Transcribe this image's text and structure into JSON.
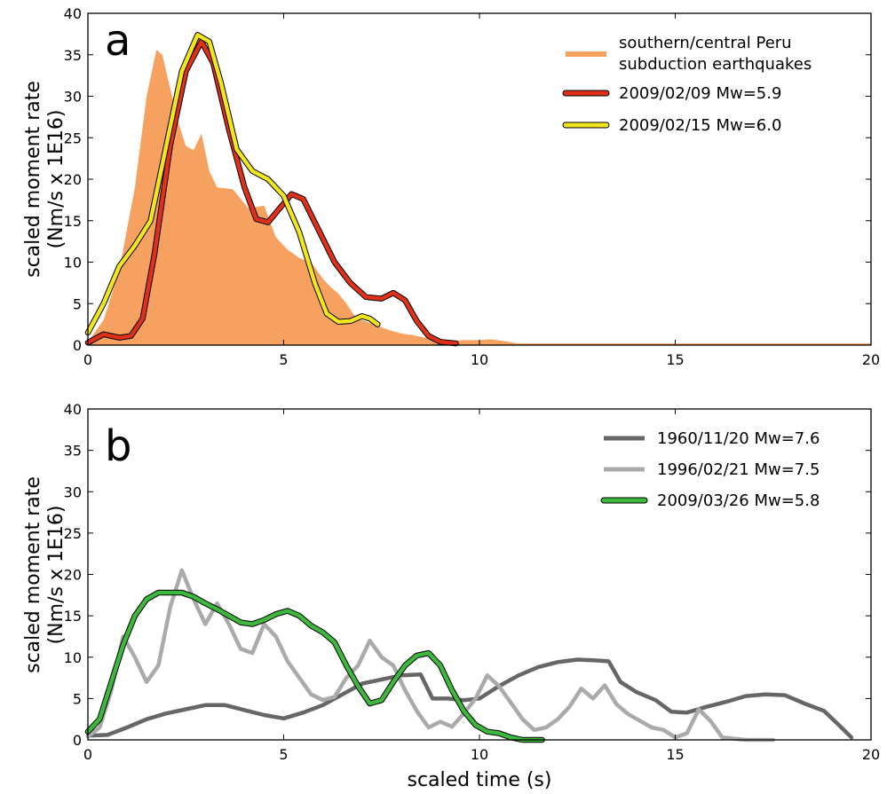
{
  "figure": {
    "xlabel": "scaled time (s)"
  },
  "chart_data": [
    {
      "type": "line",
      "panel_label": "a",
      "ylabel_line1": "scaled moment rate",
      "ylabel_line2": "(Nm/s x 1E16)",
      "xlim": [
        0,
        20
      ],
      "ylim": [
        0,
        40
      ],
      "x_ticks": [
        "0",
        "5",
        "10",
        "15",
        "20"
      ],
      "y_ticks": [
        "0",
        "5",
        "10",
        "15",
        "20",
        "25",
        "30",
        "35",
        "40"
      ],
      "grid": false,
      "legend_position": "top-right",
      "series": [
        {
          "name_lines": [
            "southern/central Peru",
            "subduction earthquakes"
          ],
          "style": "area",
          "color": "#f7a160",
          "points": [
            [
              0,
              0.4
            ],
            [
              0.4,
              3
            ],
            [
              0.8,
              9
            ],
            [
              1.2,
              19
            ],
            [
              1.5,
              30
            ],
            [
              1.75,
              35.6
            ],
            [
              1.9,
              35
            ],
            [
              2.1,
              31
            ],
            [
              2.3,
              27
            ],
            [
              2.5,
              24
            ],
            [
              2.7,
              23.5
            ],
            [
              2.9,
              25.5
            ],
            [
              3.1,
              21
            ],
            [
              3.3,
              19
            ],
            [
              3.7,
              18.8
            ],
            [
              4.1,
              16.5
            ],
            [
              4.5,
              16.8
            ],
            [
              4.8,
              13
            ],
            [
              5.1,
              11.5
            ],
            [
              5.4,
              10.5
            ],
            [
              5.7,
              10
            ],
            [
              6.0,
              8
            ],
            [
              6.2,
              7
            ],
            [
              6.4,
              6.2
            ],
            [
              6.6,
              5
            ],
            [
              6.8,
              3.6
            ],
            [
              7.0,
              3
            ],
            [
              7.3,
              2.5
            ],
            [
              7.7,
              1.8
            ],
            [
              8.0,
              1.4
            ],
            [
              8.3,
              1.2
            ],
            [
              8.7,
              0.8
            ],
            [
              9.1,
              0.5
            ],
            [
              9.6,
              0.6
            ],
            [
              10.0,
              0.6
            ],
            [
              10.3,
              0.7
            ],
            [
              10.6,
              0.5
            ],
            [
              11,
              0.2
            ],
            [
              20,
              0.2
            ]
          ]
        },
        {
          "name": "2009/02/09 Mw=5.9",
          "style": "line",
          "color": "#e03018",
          "points": [
            [
              0,
              0.3
            ],
            [
              0.4,
              1.3
            ],
            [
              0.8,
              0.9
            ],
            [
              1.1,
              1.1
            ],
            [
              1.4,
              3.2
            ],
            [
              1.7,
              11
            ],
            [
              2.1,
              24
            ],
            [
              2.5,
              33
            ],
            [
              2.9,
              36.6
            ],
            [
              3.2,
              34
            ],
            [
              3.6,
              26
            ],
            [
              4.0,
              19
            ],
            [
              4.3,
              15.2
            ],
            [
              4.6,
              14.8
            ],
            [
              4.9,
              16.5
            ],
            [
              5.2,
              18.2
            ],
            [
              5.5,
              17.6
            ],
            [
              5.9,
              13.8
            ],
            [
              6.3,
              10
            ],
            [
              6.7,
              7.5
            ],
            [
              7.1,
              5.8
            ],
            [
              7.5,
              5.6
            ],
            [
              7.8,
              6.3
            ],
            [
              8.1,
              5.4
            ],
            [
              8.4,
              2.9
            ],
            [
              8.7,
              1.1
            ],
            [
              9.0,
              0.4
            ],
            [
              9.4,
              0.2
            ]
          ]
        },
        {
          "name": "2009/02/15 Mw=6.0",
          "style": "line",
          "color": "#f0e51e",
          "points": [
            [
              0,
              1.5
            ],
            [
              0.4,
              5
            ],
            [
              0.8,
              9.5
            ],
            [
              1.2,
              12
            ],
            [
              1.6,
              15
            ],
            [
              2.0,
              24
            ],
            [
              2.4,
              33
            ],
            [
              2.8,
              37.4
            ],
            [
              3.1,
              36.6
            ],
            [
              3.4,
              31.6
            ],
            [
              3.8,
              23.6
            ],
            [
              4.2,
              21
            ],
            [
              4.6,
              20
            ],
            [
              5.0,
              18
            ],
            [
              5.4,
              13.6
            ],
            [
              5.8,
              7.4
            ],
            [
              6.1,
              3.8
            ],
            [
              6.4,
              2.8
            ],
            [
              6.7,
              2.9
            ],
            [
              7.0,
              3.5
            ],
            [
              7.2,
              3.2
            ],
            [
              7.4,
              2.5
            ]
          ]
        }
      ]
    },
    {
      "type": "line",
      "panel_label": "b",
      "ylabel_line1": "scaled moment rate",
      "ylabel_line2": "(Nm/s x 1E16)",
      "xlim": [
        0,
        20
      ],
      "ylim": [
        0,
        40
      ],
      "x_ticks": [
        "0",
        "5",
        "10",
        "15",
        "20"
      ],
      "y_ticks": [
        "0",
        "5",
        "10",
        "15",
        "20",
        "25",
        "30",
        "35",
        "40"
      ],
      "grid": false,
      "legend_position": "top-right",
      "series": [
        {
          "name": "1960/11/20 Mw=7.6",
          "color": "#666666",
          "points": [
            [
              0,
              0.5
            ],
            [
              0.5,
              0.6
            ],
            [
              1,
              1.5
            ],
            [
              1.5,
              2.5
            ],
            [
              2,
              3.2
            ],
            [
              2.5,
              3.7
            ],
            [
              3,
              4.2
            ],
            [
              3.5,
              4.2
            ],
            [
              4,
              3.6
            ],
            [
              4.5,
              3
            ],
            [
              5,
              2.6
            ],
            [
              5.5,
              3.3
            ],
            [
              6,
              4.2
            ],
            [
              6.5,
              5.5
            ],
            [
              7,
              6.8
            ],
            [
              7.5,
              7.3
            ],
            [
              8,
              7.8
            ],
            [
              8.5,
              7.9
            ],
            [
              8.8,
              5
            ],
            [
              9.2,
              5
            ],
            [
              9.6,
              4.8
            ],
            [
              10,
              5
            ],
            [
              10.5,
              6.5
            ],
            [
              11,
              7.8
            ],
            [
              11.5,
              8.8
            ],
            [
              12,
              9.4
            ],
            [
              12.5,
              9.7
            ],
            [
              13,
              9.6
            ],
            [
              13.3,
              9.5
            ],
            [
              13.6,
              7
            ],
            [
              14,
              5.8
            ],
            [
              14.5,
              4.8
            ],
            [
              14.9,
              3.4
            ],
            [
              15.3,
              3.3
            ],
            [
              15.8,
              4
            ],
            [
              16.3,
              4.6
            ],
            [
              16.8,
              5.3
            ],
            [
              17.3,
              5.5
            ],
            [
              17.8,
              5.4
            ],
            [
              18.3,
              4.4
            ],
            [
              18.8,
              3.5
            ],
            [
              19.2,
              1.7
            ],
            [
              19.5,
              0.3
            ]
          ]
        },
        {
          "name": "1996/02/21 Mw=7.5",
          "color": "#aaaaaa",
          "points": [
            [
              0,
              0.4
            ],
            [
              0.3,
              1.5
            ],
            [
              0.6,
              6
            ],
            [
              0.9,
              12.5
            ],
            [
              1.2,
              10
            ],
            [
              1.5,
              7
            ],
            [
              1.8,
              9
            ],
            [
              2.1,
              16
            ],
            [
              2.4,
              20.5
            ],
            [
              2.7,
              17
            ],
            [
              3.0,
              14
            ],
            [
              3.3,
              16.5
            ],
            [
              3.6,
              14
            ],
            [
              3.9,
              11
            ],
            [
              4.2,
              10.5
            ],
            [
              4.5,
              14
            ],
            [
              4.8,
              12.5
            ],
            [
              5.1,
              9.5
            ],
            [
              5.4,
              7.5
            ],
            [
              5.7,
              5.5
            ],
            [
              6.0,
              4.8
            ],
            [
              6.3,
              5.2
            ],
            [
              6.6,
              7.5
            ],
            [
              6.9,
              9
            ],
            [
              7.2,
              12
            ],
            [
              7.5,
              10
            ],
            [
              7.8,
              9
            ],
            [
              8.1,
              6
            ],
            [
              8.4,
              3.5
            ],
            [
              8.7,
              1.5
            ],
            [
              9.0,
              2.2
            ],
            [
              9.3,
              1.6
            ],
            [
              9.6,
              3.2
            ],
            [
              9.9,
              5
            ],
            [
              10.2,
              7.8
            ],
            [
              10.5,
              6.5
            ],
            [
              10.8,
              4.5
            ],
            [
              11.1,
              2.5
            ],
            [
              11.4,
              1.2
            ],
            [
              11.7,
              1.5
            ],
            [
              12.0,
              2.5
            ],
            [
              12.3,
              4
            ],
            [
              12.6,
              6.2
            ],
            [
              12.9,
              5
            ],
            [
              13.2,
              6.6
            ],
            [
              13.5,
              4.3
            ],
            [
              13.8,
              3.1
            ],
            [
              14.1,
              2.3
            ],
            [
              14.4,
              1.5
            ],
            [
              14.7,
              1.2
            ],
            [
              15.0,
              0.3
            ],
            [
              15.3,
              0.8
            ],
            [
              15.6,
              3.7
            ],
            [
              15.9,
              2.3
            ],
            [
              16.2,
              0.3
            ],
            [
              16.8,
              0
            ],
            [
              17.5,
              0
            ]
          ]
        },
        {
          "name": "2009/03/26 Mw=5.8",
          "color": "#3cb83c",
          "points": [
            [
              0,
              1
            ],
            [
              0.3,
              2.5
            ],
            [
              0.6,
              7
            ],
            [
              0.9,
              11.5
            ],
            [
              1.2,
              15
            ],
            [
              1.5,
              17
            ],
            [
              1.8,
              17.8
            ],
            [
              2.1,
              17.8
            ],
            [
              2.4,
              17.8
            ],
            [
              2.7,
              17.3
            ],
            [
              3.0,
              16.5
            ],
            [
              3.3,
              15.8
            ],
            [
              3.6,
              15
            ],
            [
              3.9,
              14.2
            ],
            [
              4.2,
              14
            ],
            [
              4.5,
              14.5
            ],
            [
              4.8,
              15.2
            ],
            [
              5.1,
              15.6
            ],
            [
              5.4,
              15
            ],
            [
              5.7,
              13.8
            ],
            [
              6.0,
              13
            ],
            [
              6.3,
              11.8
            ],
            [
              6.6,
              9
            ],
            [
              6.9,
              6.5
            ],
            [
              7.2,
              4.4
            ],
            [
              7.5,
              4.8
            ],
            [
              7.8,
              7
            ],
            [
              8.1,
              9
            ],
            [
              8.4,
              10.2
            ],
            [
              8.7,
              10.5
            ],
            [
              9.0,
              9
            ],
            [
              9.3,
              6
            ],
            [
              9.6,
              3.5
            ],
            [
              9.9,
              1.8
            ],
            [
              10.2,
              1
            ],
            [
              10.5,
              0.8
            ],
            [
              10.8,
              0.3
            ],
            [
              11.1,
              0
            ],
            [
              11.6,
              0
            ]
          ]
        }
      ]
    }
  ]
}
